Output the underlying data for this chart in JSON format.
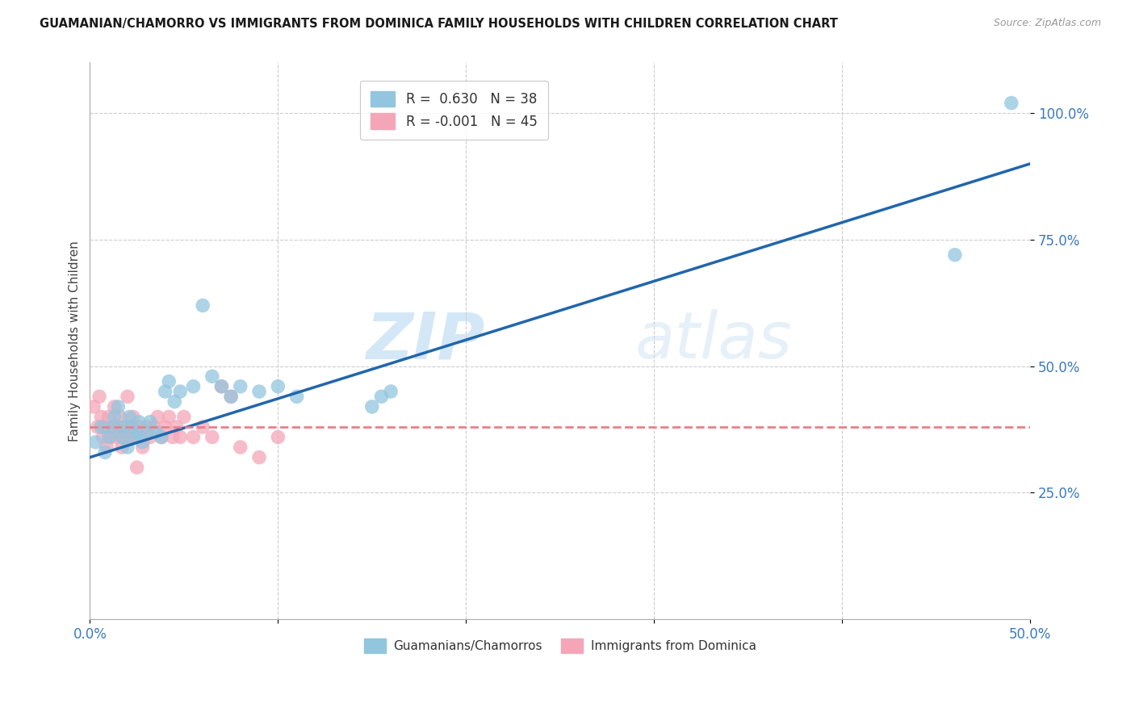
{
  "title": "GUAMANIAN/CHAMORRO VS IMMIGRANTS FROM DOMINICA FAMILY HOUSEHOLDS WITH CHILDREN CORRELATION CHART",
  "source": "Source: ZipAtlas.com",
  "ylabel": "Family Households with Children",
  "xlim": [
    0.0,
    0.5
  ],
  "ylim": [
    0.0,
    1.1
  ],
  "xticks": [
    0.0,
    0.1,
    0.2,
    0.3,
    0.4,
    0.5
  ],
  "xticklabels": [
    "0.0%",
    "",
    "",
    "",
    "",
    "50.0%"
  ],
  "yticks": [
    0.25,
    0.5,
    0.75,
    1.0
  ],
  "yticklabels": [
    "25.0%",
    "50.0%",
    "75.0%",
    "100.0%"
  ],
  "color_blue": "#92c5de",
  "color_pink": "#f4a6b8",
  "line_blue": "#2166ac",
  "line_pink": "#e8808a",
  "watermark_zip": "ZIP",
  "watermark_atlas": "atlas",
  "guamanian_x": [
    0.003,
    0.006,
    0.008,
    0.01,
    0.012,
    0.013,
    0.015,
    0.017,
    0.018,
    0.02,
    0.021,
    0.022,
    0.024,
    0.025,
    0.026,
    0.028,
    0.03,
    0.032,
    0.035,
    0.038,
    0.04,
    0.042,
    0.045,
    0.048,
    0.055,
    0.06,
    0.065,
    0.07,
    0.075,
    0.08,
    0.09,
    0.1,
    0.11,
    0.15,
    0.155,
    0.16,
    0.46,
    0.49
  ],
  "guamanian_y": [
    0.35,
    0.38,
    0.33,
    0.36,
    0.38,
    0.4,
    0.42,
    0.36,
    0.38,
    0.34,
    0.4,
    0.38,
    0.36,
    0.37,
    0.39,
    0.35,
    0.37,
    0.39,
    0.37,
    0.36,
    0.45,
    0.47,
    0.43,
    0.45,
    0.46,
    0.62,
    0.48,
    0.46,
    0.44,
    0.46,
    0.45,
    0.46,
    0.44,
    0.42,
    0.44,
    0.45,
    0.72,
    1.02
  ],
  "dominica_x": [
    0.002,
    0.004,
    0.005,
    0.006,
    0.007,
    0.008,
    0.009,
    0.01,
    0.011,
    0.012,
    0.013,
    0.014,
    0.015,
    0.016,
    0.017,
    0.018,
    0.019,
    0.02,
    0.021,
    0.022,
    0.023,
    0.024,
    0.025,
    0.026,
    0.027,
    0.028,
    0.03,
    0.032,
    0.034,
    0.036,
    0.038,
    0.04,
    0.042,
    0.044,
    0.046,
    0.048,
    0.05,
    0.055,
    0.06,
    0.065,
    0.07,
    0.075,
    0.08,
    0.09,
    0.1
  ],
  "dominica_y": [
    0.42,
    0.38,
    0.44,
    0.4,
    0.36,
    0.38,
    0.34,
    0.4,
    0.36,
    0.38,
    0.42,
    0.36,
    0.38,
    0.4,
    0.34,
    0.36,
    0.38,
    0.44,
    0.36,
    0.38,
    0.4,
    0.36,
    0.3,
    0.38,
    0.36,
    0.34,
    0.38,
    0.36,
    0.38,
    0.4,
    0.36,
    0.38,
    0.4,
    0.36,
    0.38,
    0.36,
    0.4,
    0.36,
    0.38,
    0.36,
    0.46,
    0.44,
    0.34,
    0.32,
    0.36
  ],
  "blue_line_x": [
    0.0,
    0.5
  ],
  "blue_line_y": [
    0.32,
    0.9
  ],
  "pink_line_x": [
    0.0,
    0.5
  ],
  "pink_line_y": [
    0.38,
    0.38
  ]
}
